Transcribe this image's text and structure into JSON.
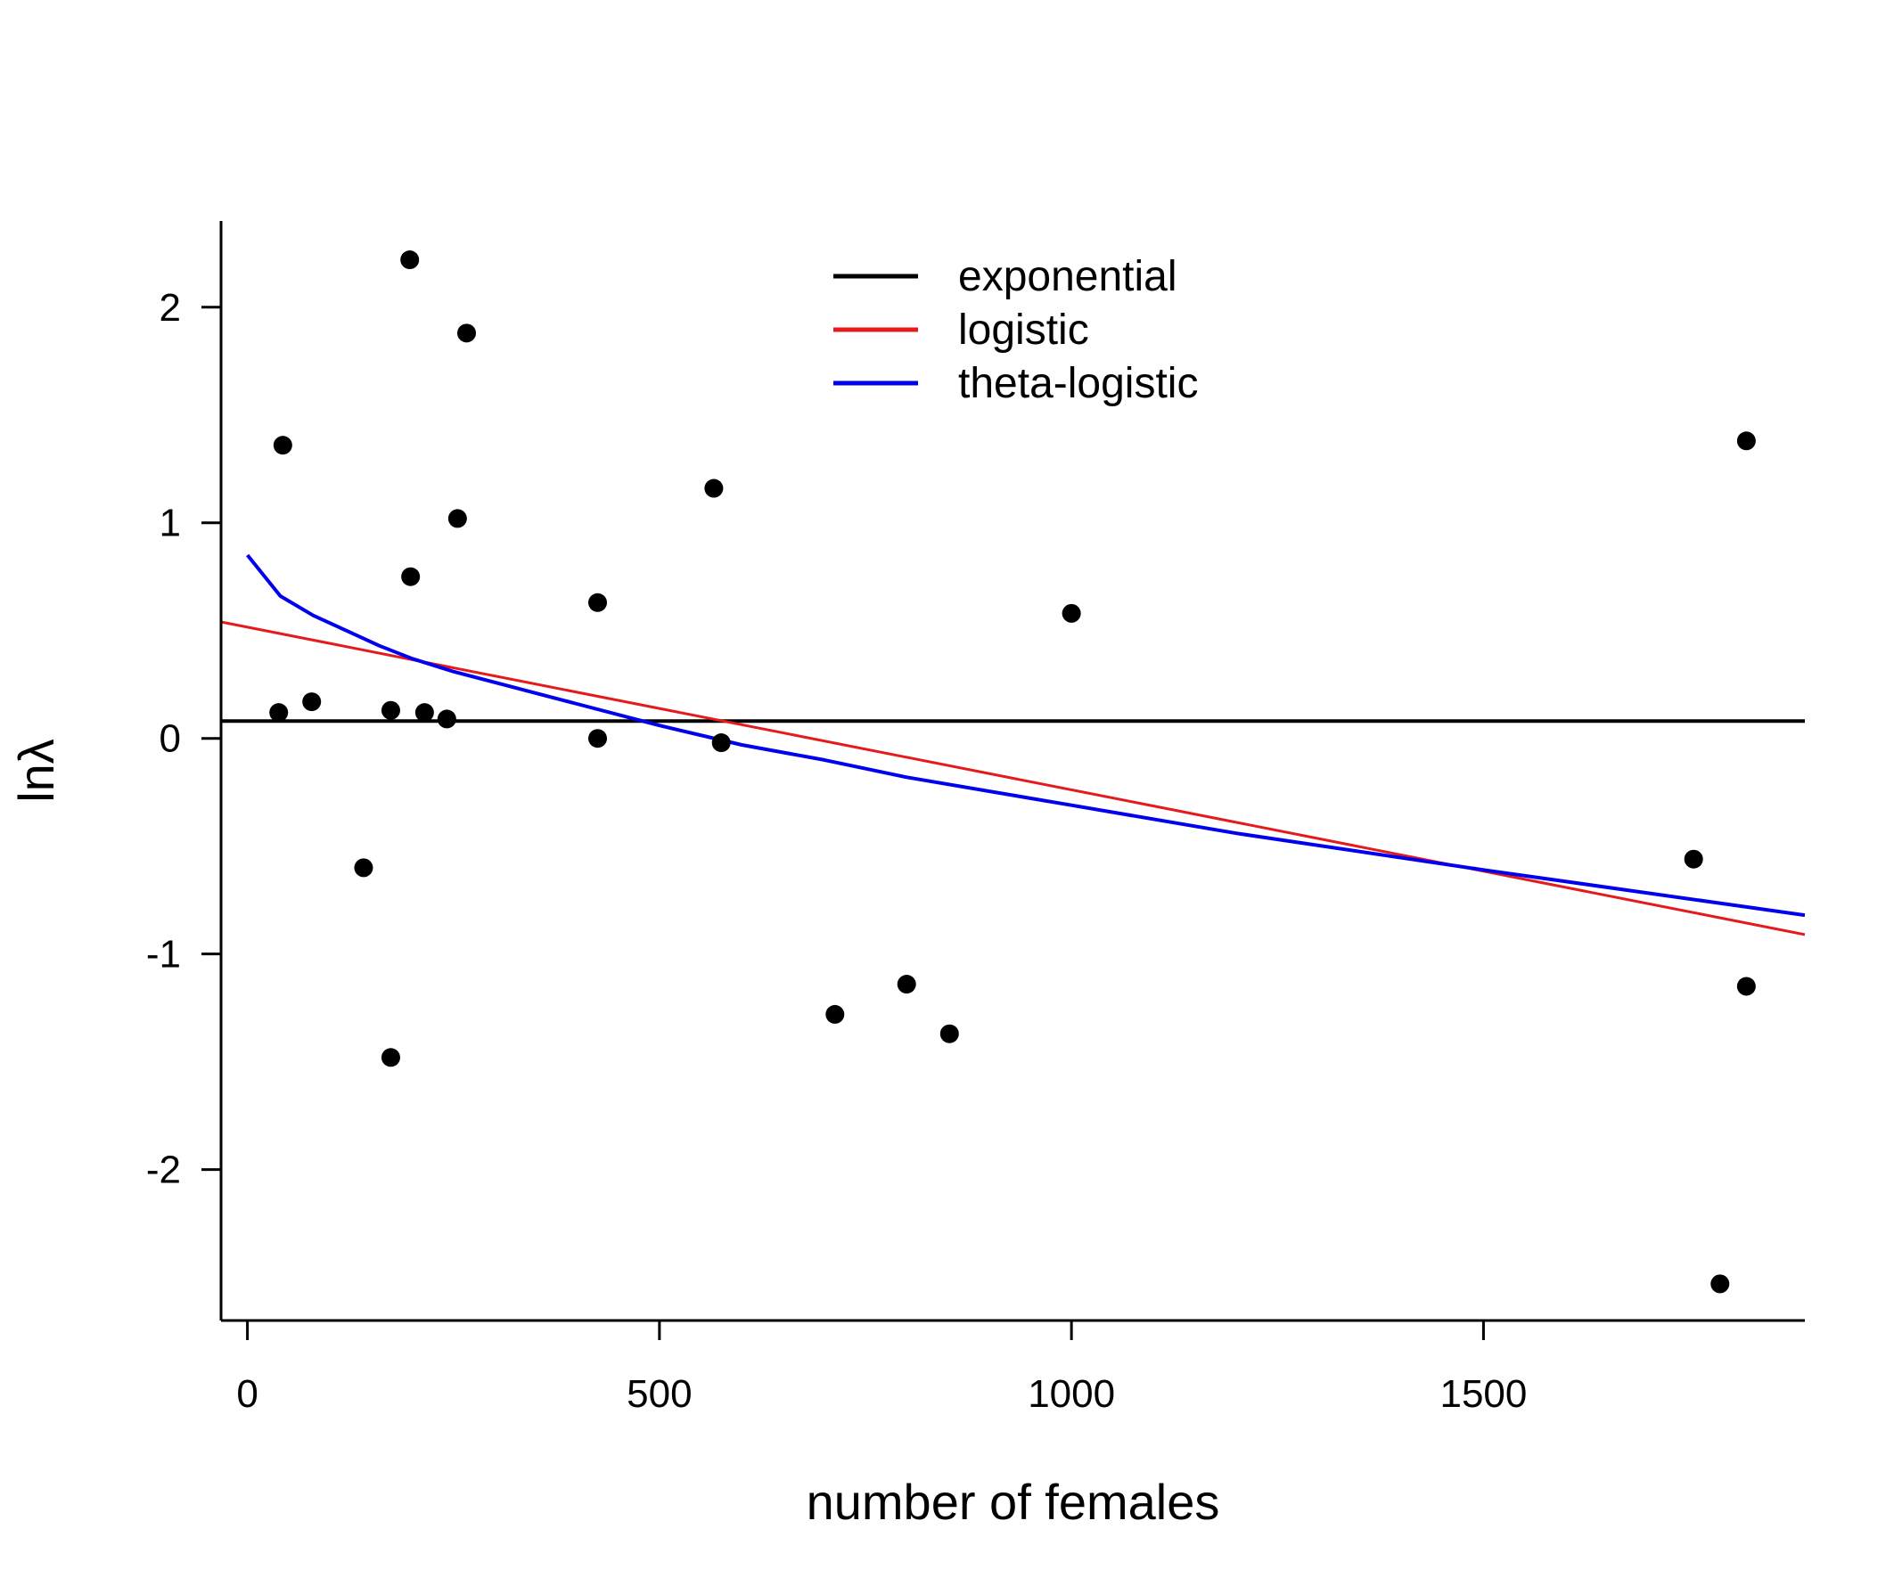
{
  "chart_data": {
    "type": "scatter",
    "title": "",
    "xlabel": "number of females",
    "ylabel": "lnλ",
    "xlim": [
      -32,
      1890
    ],
    "ylim": [
      -2.7,
      2.4
    ],
    "xticks": [
      0,
      500,
      1000,
      1500
    ],
    "yticks": [
      -2,
      -1,
      0,
      1,
      2
    ],
    "grid": false,
    "legend_position": "top-center",
    "points": [
      {
        "x": 38,
        "y": 0.12
      },
      {
        "x": 43,
        "y": 1.36
      },
      {
        "x": 78,
        "y": 0.17
      },
      {
        "x": 141,
        "y": -0.6
      },
      {
        "x": 174,
        "y": 0.13
      },
      {
        "x": 174,
        "y": -1.48
      },
      {
        "x": 197,
        "y": 2.22
      },
      {
        "x": 198,
        "y": 0.75
      },
      {
        "x": 215,
        "y": 0.12
      },
      {
        "x": 242,
        "y": 0.09
      },
      {
        "x": 255,
        "y": 1.02
      },
      {
        "x": 266,
        "y": 1.88
      },
      {
        "x": 425,
        "y": 0.63
      },
      {
        "x": 425,
        "y": 0.0
      },
      {
        "x": 566,
        "y": 1.16
      },
      {
        "x": 575,
        "y": -0.02
      },
      {
        "x": 713,
        "y": -1.28
      },
      {
        "x": 800,
        "y": -1.14
      },
      {
        "x": 852,
        "y": -1.37
      },
      {
        "x": 1000,
        "y": 0.58
      },
      {
        "x": 1755,
        "y": -0.56
      },
      {
        "x": 1787,
        "y": -2.53
      },
      {
        "x": 1819,
        "y": 1.38
      },
      {
        "x": 1819,
        "y": -1.15
      }
    ],
    "series": [
      {
        "name": "exponential",
        "color": "#000000",
        "x": [
          -32,
          1890
        ],
        "y": [
          0.08,
          0.08
        ]
      },
      {
        "name": "logistic",
        "color": "#e41a1c",
        "x": [
          -32,
          1890
        ],
        "y": [
          0.54,
          -0.91
        ]
      },
      {
        "name": "theta-logistic",
        "color": "#0000ee",
        "x": [
          0,
          40,
          80,
          120,
          160,
          200,
          250,
          300,
          400,
          500,
          600,
          700,
          800,
          1000,
          1200,
          1500,
          1890
        ],
        "y": [
          0.85,
          0.66,
          0.57,
          0.5,
          0.43,
          0.37,
          0.31,
          0.26,
          0.16,
          0.06,
          -0.03,
          -0.1,
          -0.18,
          -0.31,
          -0.44,
          -0.61,
          -0.82
        ]
      }
    ]
  }
}
